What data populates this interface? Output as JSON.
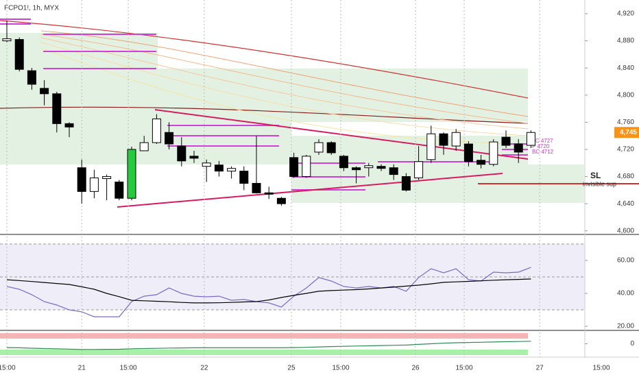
{
  "chart_data": [
    {
      "type": "candlestick",
      "title": "FCPO1!, 1h, MYX",
      "open": [
        4880,
        4882,
        4836,
        4810,
        4802,
        4758,
        4693,
        4658,
        4677,
        4672,
        4648,
        4718,
        4730,
        4745,
        4725,
        4710,
        4695,
        4697,
        4688,
        4688,
        4670,
        4656,
        4648,
        4708,
        4680,
        4716,
        4730,
        4710,
        4693,
        4693,
        4695,
        4693,
        4680,
        4678,
        4705,
        4743,
        4725,
        4728,
        4704,
        4698,
        4738,
        4728,
        4726
      ],
      "high": [
        4910,
        4885,
        4840,
        4822,
        4805,
        4760,
        4705,
        4690,
        4683,
        4675,
        4724,
        4740,
        4772,
        4760,
        4738,
        4718,
        4705,
        4703,
        4695,
        4695,
        4740,
        4665,
        4650,
        4715,
        4712,
        4735,
        4732,
        4712,
        4695,
        4700,
        4698,
        4698,
        4685,
        4725,
        4755,
        4745,
        4750,
        4732,
        4712,
        4735,
        4748,
        4735,
        4748
      ],
      "low": [
        4878,
        4835,
        4808,
        4785,
        4745,
        4738,
        4640,
        4648,
        4645,
        4645,
        4645,
        4718,
        4728,
        4720,
        4695,
        4700,
        4672,
        4680,
        4677,
        4660,
        4655,
        4647,
        4637,
        4678,
        4678,
        4712,
        4712,
        4688,
        4670,
        4680,
        4688,
        4675,
        4658,
        4675,
        4700,
        4712,
        4718,
        4695,
        4692,
        4695,
        4722,
        4700,
        4722
      ],
      "close": [
        4883,
        4838,
        4816,
        4802,
        4758,
        4753,
        4658,
        4678,
        4680,
        4648,
        4720,
        4730,
        4765,
        4728,
        4703,
        4707,
        4700,
        4688,
        4692,
        4670,
        4656,
        4654,
        4640,
        4680,
        4710,
        4730,
        4715,
        4693,
        4690,
        4696,
        4692,
        4683,
        4660,
        4702,
        4743,
        4726,
        4745,
        4702,
        4698,
        4731,
        4726,
        4716,
        4745
      ],
      "up_color": "#ffffff",
      "down_color": "#000000",
      "highlight_index": 10,
      "highlight_color": "#27c93f",
      "xlim": [
        -0.55,
        50.66
      ],
      "xticks": [
        {
          "value": 0,
          "label": "15:00"
        },
        {
          "value": 6,
          "label": "21"
        },
        {
          "value": 9.73,
          "label": "15:00"
        },
        {
          "value": 15.82,
          "label": "22"
        },
        {
          "value": 22.8,
          "label": "25"
        },
        {
          "value": 26.76,
          "label": "15:00"
        },
        {
          "value": 32.75,
          "label": "26"
        },
        {
          "value": 36.65,
          "label": "15:00"
        },
        {
          "value": 42.7,
          "label": "27"
        },
        {
          "value": 47.64,
          "label": "15:00"
        }
      ],
      "ylim": [
        4594.7,
        4940.2
      ],
      "yticks": [
        {
          "value": 4600,
          "label": "4,600"
        },
        {
          "value": 4640,
          "label": "4,640"
        },
        {
          "value": 4680,
          "label": "4,680"
        },
        {
          "value": 4720,
          "label": "4,720"
        },
        {
          "value": 4760,
          "label": "4,760"
        },
        {
          "value": 4800,
          "label": "4,800"
        },
        {
          "value": 4840,
          "label": "4,840"
        },
        {
          "value": 4880,
          "label": "4,880"
        },
        {
          "value": 4920,
          "label": "4,920"
        }
      ],
      "last_price": {
        "value": 4745,
        "label": "4,745"
      },
      "last_price_color": "#f7931a",
      "annotations": [
        "TC 4727",
        "P 4720",
        "BC 4712",
        "SL",
        "invisible sup"
      ]
    },
    {
      "type": "line",
      "series": [
        {
          "color": "#7b68c8",
          "values": [
            44.2,
            42.5,
            39.2,
            35,
            32.9,
            30,
            28.8,
            25.8,
            25.8,
            25.8,
            35,
            38.3,
            39.2,
            43.3,
            40,
            38.3,
            37.9,
            38.3,
            35.8,
            36.3,
            35,
            34.2,
            31.7,
            38.3,
            43.3,
            49.6,
            47.5,
            44.2,
            43.3,
            44.2,
            43.3,
            44.2,
            41.3,
            49.6,
            55,
            52.5,
            55,
            48.3,
            47.5,
            52.9,
            52.5,
            52.9,
            55.8
          ]
        },
        {
          "color": "#000000",
          "values": [
            48.3,
            47.8,
            47.2,
            46.6,
            46,
            45.4,
            44,
            42.5,
            40,
            38,
            35.8,
            35.5,
            35.2,
            34.9,
            34.5,
            34.2,
            34.2,
            34.3,
            34.5,
            34.8,
            35,
            36,
            37.5,
            38.8,
            40,
            41.3,
            41.7,
            42,
            42.3,
            42.7,
            43.3,
            43.8,
            44.4,
            45,
            45.8,
            46.7,
            47,
            47.3,
            47.6,
            48,
            48.3,
            48.5,
            48.75
          ]
        }
      ],
      "ylim": [
        17.5,
        75.4
      ],
      "yticks": [
        {
          "value": 20,
          "label": "20.00"
        },
        {
          "value": 40,
          "label": "40.00"
        },
        {
          "value": 60,
          "label": "60.00"
        }
      ]
    },
    {
      "type": "line",
      "series": [
        {
          "color": "#2e8b57",
          "values": [
            -0.3,
            -0.32,
            -0.35,
            -0.38,
            -0.4,
            -0.42,
            -0.45,
            -0.45,
            -0.44,
            -0.43,
            -0.4,
            -0.38,
            -0.36,
            -0.34,
            -0.33,
            -0.32,
            -0.32,
            -0.32,
            -0.32,
            -0.32,
            -0.32,
            -0.32,
            -0.32,
            -0.3,
            -0.28,
            -0.25,
            -0.22,
            -0.2,
            -0.18,
            -0.16,
            -0.14,
            -0.12,
            -0.1,
            -0.05,
            0,
            0.05,
            0.08,
            0.1,
            0.12,
            0.14,
            0.16,
            0.18,
            0.2
          ]
        }
      ],
      "ylim": [
        -1,
        1
      ],
      "yticks": [
        0
      ]
    }
  ]
}
